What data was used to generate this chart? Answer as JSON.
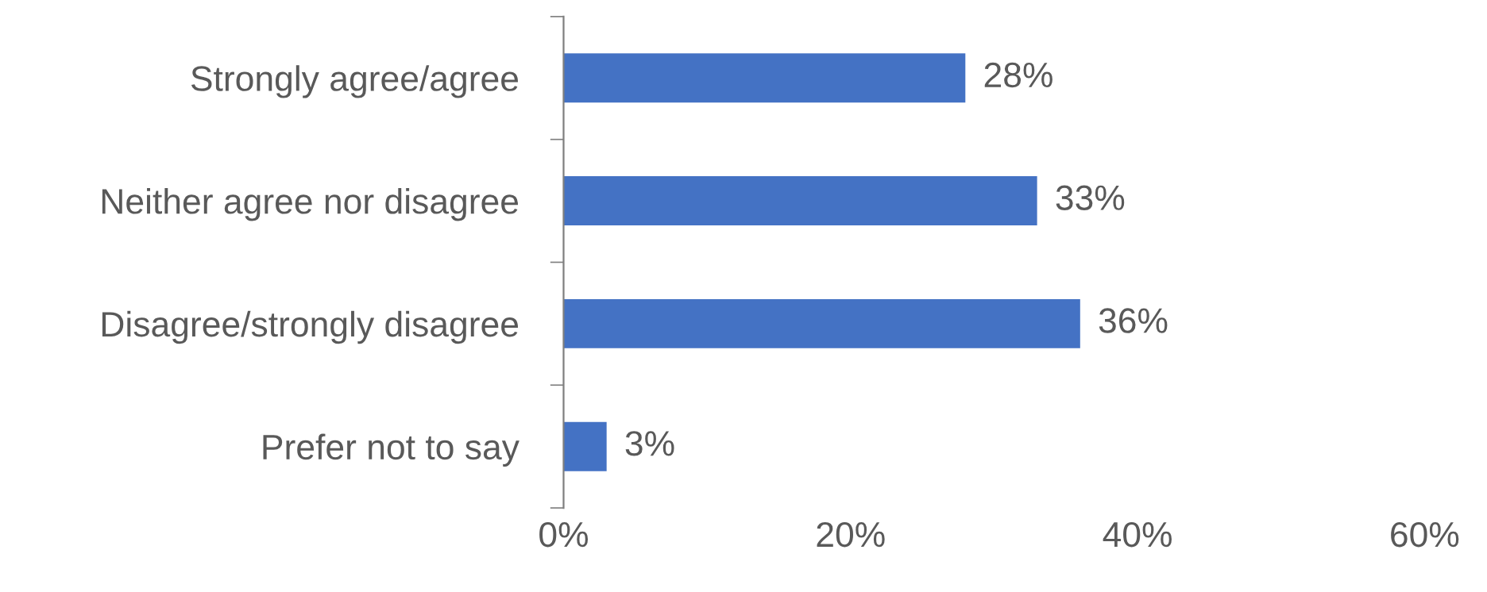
{
  "chart_data": {
    "type": "bar",
    "orientation": "horizontal",
    "categories": [
      "Strongly agree/agree",
      "Neither agree nor disagree",
      "Disagree/strongly disagree",
      "Prefer not to say"
    ],
    "values": [
      28,
      33,
      36,
      3
    ],
    "value_labels": [
      "28%",
      "33%",
      "36%",
      "3%"
    ],
    "color": "#4472c4",
    "xlim": [
      0,
      60
    ],
    "xticks": [
      {
        "value": 0,
        "label": "0%"
      },
      {
        "value": 20,
        "label": "20%"
      },
      {
        "value": 40,
        "label": "40%"
      },
      {
        "value": 60,
        "label": "60%"
      }
    ],
    "grid": false,
    "legend": false
  }
}
